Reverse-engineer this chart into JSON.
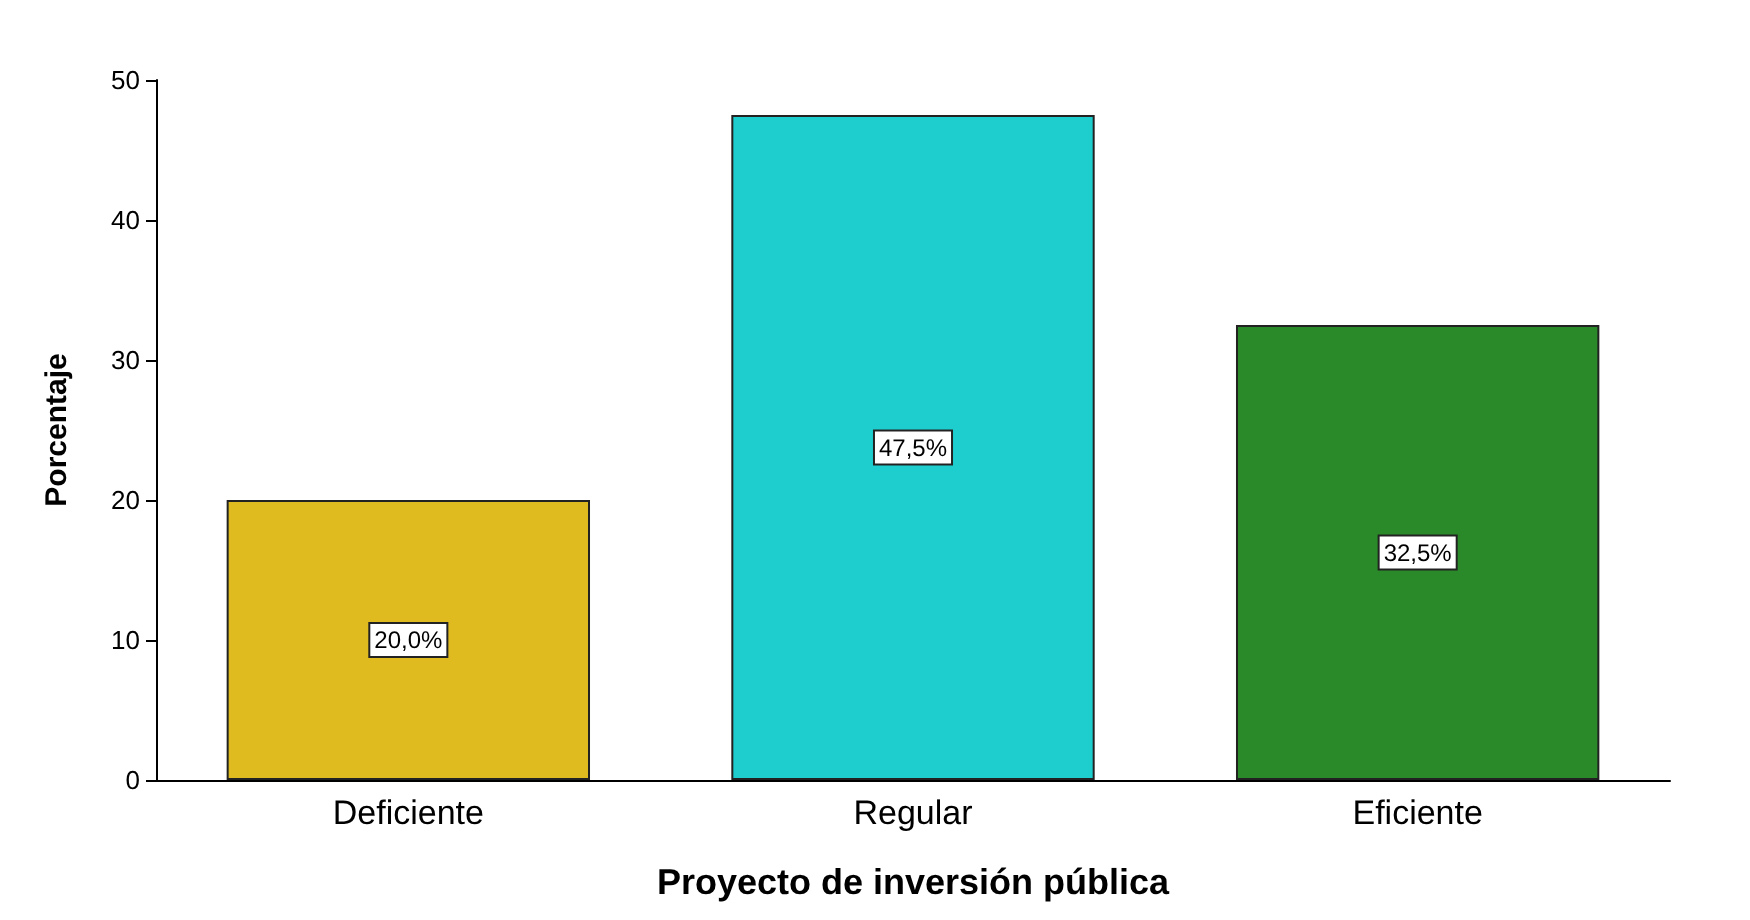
{
  "chart_data": {
    "type": "bar",
    "xlabel": "Proyecto de inversión pública",
    "ylabel": "Porcentaje",
    "categories": [
      "Deficiente",
      "Regular",
      "Eficiente"
    ],
    "values": [
      20.0,
      47.5,
      32.5
    ],
    "colors": [
      "#e0bb20",
      "#1ecece",
      "#2a8a2a"
    ],
    "value_labels": [
      "20,0%",
      "47,5%",
      "32,5%"
    ],
    "ylim": [
      0,
      50
    ],
    "yticks": [
      0,
      10,
      20,
      30,
      40,
      50
    ],
    "grid": false
  }
}
